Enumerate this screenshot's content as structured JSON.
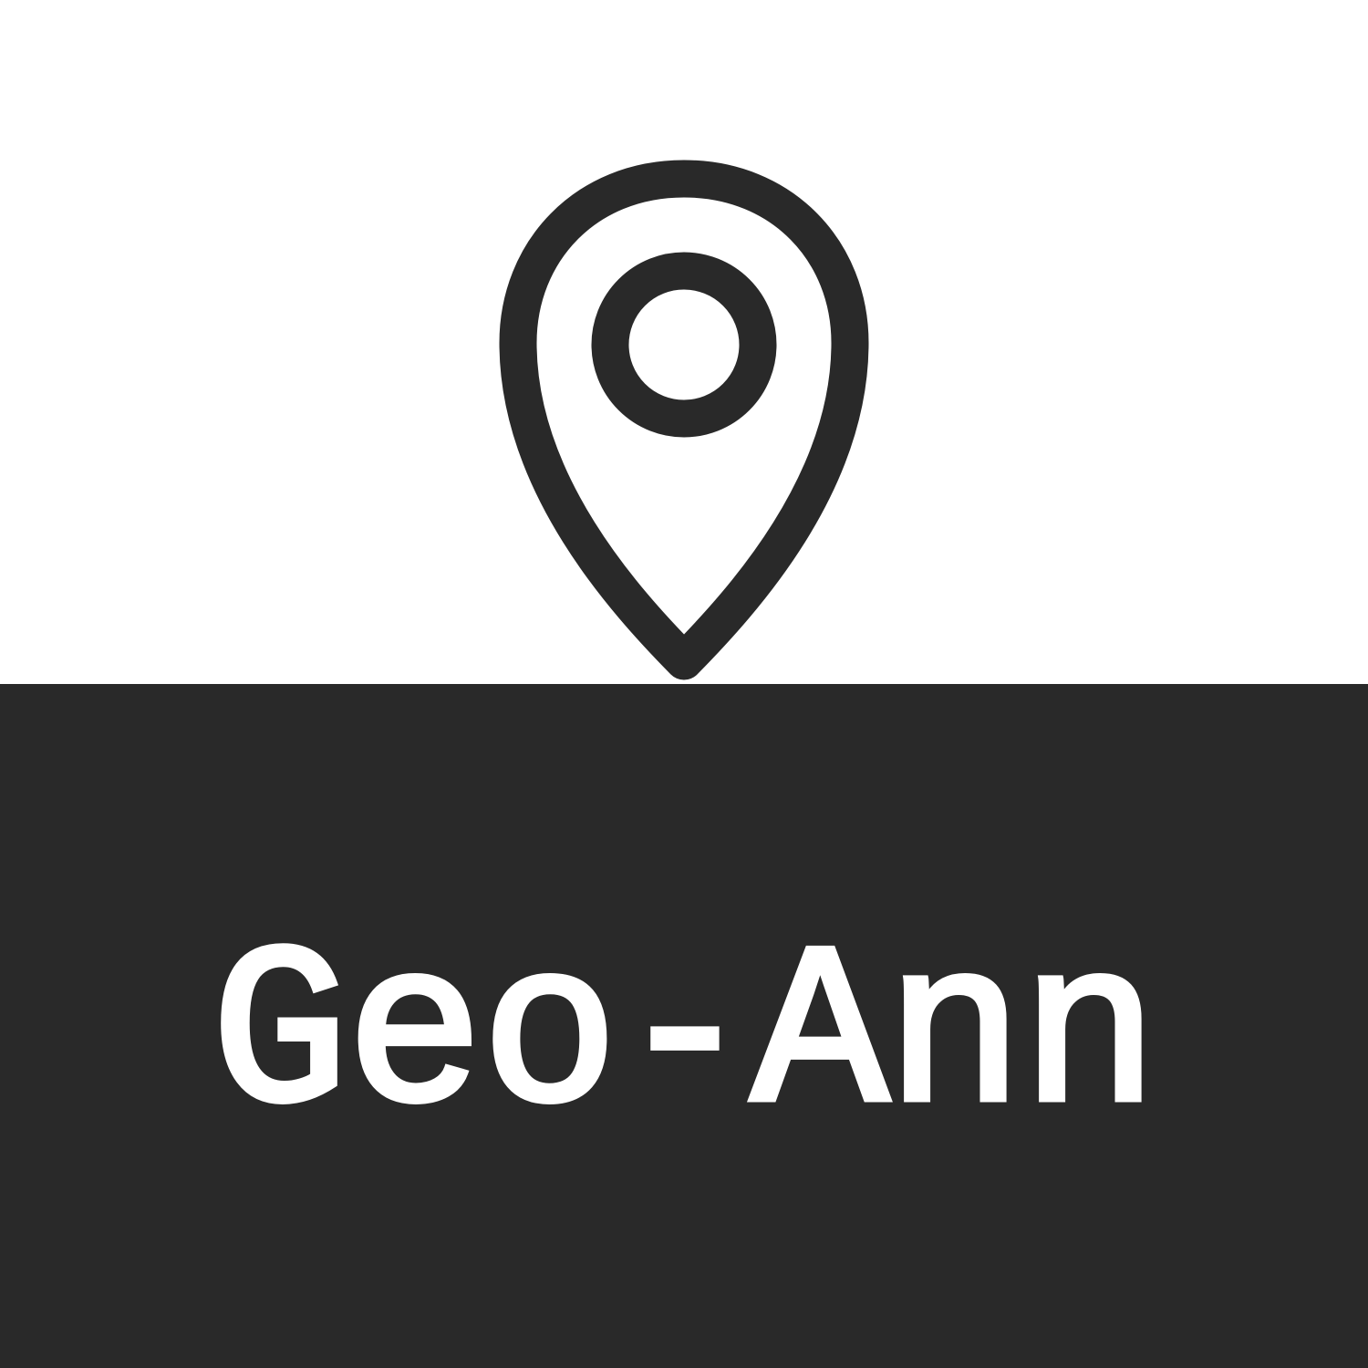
{
  "logo": {
    "icon": "map-pin-icon",
    "title": "Geo-Ann"
  },
  "colors": {
    "background_top": "#ffffff",
    "background_bottom": "#292929",
    "icon_stroke": "#292929",
    "title_text": "#ffffff"
  }
}
